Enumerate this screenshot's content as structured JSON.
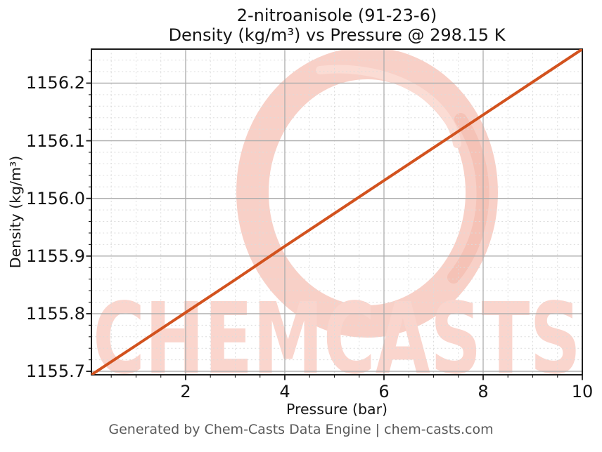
{
  "footer": {
    "text": "Generated by Chem-Casts Data Engine | chem-casts.com"
  },
  "watermark": {
    "text": "CHEMCASTS",
    "text_color": "#fad5cd",
    "ring_color": "#f8d0c7",
    "accent_color": "#f5c2b6",
    "swoosh_color": "#fbdcd4"
  },
  "colors": {
    "background": "#ffffff",
    "line": "#d2521e",
    "grid_major": "#adadad",
    "grid_minor": "#dcdcdc",
    "spine": "#1c1c1c",
    "tick": "#1c1c1c",
    "text": "#141414",
    "footer_text": "#5a5a5a"
  },
  "chart_data": {
    "type": "line",
    "title": "2-nitroanisole (91-23-6)",
    "subtitle": "Density (kg/m³) vs Pressure @ 298.15 K",
    "xlabel": "Pressure (bar)",
    "ylabel": "Density (kg/m³)",
    "xlim": [
      0.1,
      10
    ],
    "ylim": [
      1155.694,
      1156.259
    ],
    "xticks": [
      2,
      4,
      6,
      8,
      10
    ],
    "xtick_labels": [
      "2",
      "4",
      "6",
      "8",
      "10"
    ],
    "yticks": [
      1155.7,
      1155.8,
      1155.9,
      1156.0,
      1156.1,
      1156.2
    ],
    "ytick_labels": [
      "1155.7",
      "1155.8",
      "1155.9",
      "1156.0",
      "1156.1",
      "1156.2"
    ],
    "minor_x_step": 0.5,
    "minor_y_step": 0.02,
    "grid": true,
    "legend": null,
    "line_width": 4,
    "series": [
      {
        "name": "Density",
        "color": "#d2521e",
        "x": [
          0.1,
          1,
          2,
          3,
          4,
          5,
          6,
          7,
          8,
          9,
          10
        ],
        "y": [
          1155.694,
          1155.745,
          1155.802,
          1155.859,
          1155.917,
          1155.974,
          1156.031,
          1156.088,
          1156.145,
          1156.202,
          1156.259
        ]
      }
    ]
  }
}
